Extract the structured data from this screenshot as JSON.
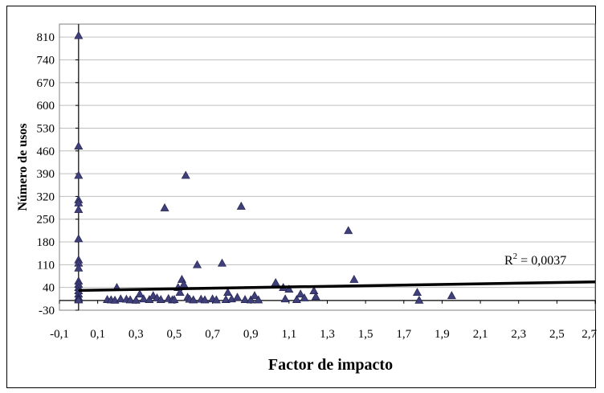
{
  "chart_data": {
    "type": "scatter",
    "title": "",
    "xlabel": "Factor de impacto",
    "ylabel": "Número de usos",
    "xlim": [
      -0.1,
      2.7
    ],
    "ylim": [
      -30,
      850
    ],
    "x_ticks": [
      "-0,1",
      "0,1",
      "0,3",
      "0,5",
      "0,7",
      "0,9",
      "1,1",
      "1,3",
      "1,5",
      "1,7",
      "1,9",
      "2,1",
      "2,3",
      "2,5",
      "2,7"
    ],
    "y_ticks": [
      "810",
      "740",
      "670",
      "600",
      "530",
      "460",
      "390",
      "320",
      "250",
      "180",
      "110",
      "40",
      "-30"
    ],
    "y_tick_values": [
      810,
      740,
      670,
      600,
      530,
      460,
      390,
      320,
      250,
      180,
      110,
      40,
      -30
    ],
    "x_tick_values": [
      -0.1,
      0.1,
      0.3,
      0.5,
      0.7,
      0.9,
      1.1,
      1.3,
      1.5,
      1.7,
      1.9,
      2.1,
      2.3,
      2.5,
      2.7
    ],
    "grid": "horizontal",
    "marker_color": "#3f3f7a",
    "trendline_color": "#000000",
    "annotation": {
      "text_base": "R",
      "text_sup": "2",
      "text_rest": " = 0,0037"
    },
    "trendline": {
      "x": [
        0,
        2.7
      ],
      "y": [
        31,
        57
      ]
    },
    "points": [
      [
        0,
        815
      ],
      [
        0,
        475
      ],
      [
        0,
        385
      ],
      [
        0,
        310
      ],
      [
        0,
        300
      ],
      [
        0,
        280
      ],
      [
        0,
        190
      ],
      [
        0,
        125
      ],
      [
        0,
        115
      ],
      [
        0,
        100
      ],
      [
        0,
        60
      ],
      [
        0,
        50
      ],
      [
        0,
        40
      ],
      [
        0,
        30
      ],
      [
        0,
        20
      ],
      [
        0,
        10
      ],
      [
        0,
        5
      ],
      [
        0,
        2
      ],
      [
        0.15,
        3
      ],
      [
        0.17,
        2
      ],
      [
        0.19,
        1
      ],
      [
        0.2,
        40
      ],
      [
        0.22,
        5
      ],
      [
        0.25,
        4
      ],
      [
        0.27,
        2
      ],
      [
        0.3,
        1
      ],
      [
        0.32,
        20
      ],
      [
        0.34,
        5
      ],
      [
        0.37,
        3
      ],
      [
        0.39,
        15
      ],
      [
        0.41,
        8
      ],
      [
        0.43,
        3
      ],
      [
        0.45,
        285
      ],
      [
        0.47,
        6
      ],
      [
        0.49,
        2
      ],
      [
        0.5,
        3
      ],
      [
        0.52,
        40
      ],
      [
        0.53,
        25
      ],
      [
        0.54,
        65
      ],
      [
        0.55,
        50
      ],
      [
        0.56,
        385
      ],
      [
        0.57,
        10
      ],
      [
        0.58,
        4
      ],
      [
        0.6,
        2
      ],
      [
        0.62,
        110
      ],
      [
        0.64,
        4
      ],
      [
        0.66,
        2
      ],
      [
        0.7,
        5
      ],
      [
        0.72,
        2
      ],
      [
        0.75,
        115
      ],
      [
        0.77,
        3
      ],
      [
        0.78,
        25
      ],
      [
        0.8,
        5
      ],
      [
        0.83,
        10
      ],
      [
        0.85,
        290
      ],
      [
        0.87,
        3
      ],
      [
        0.9,
        2
      ],
      [
        0.92,
        15
      ],
      [
        0.94,
        2
      ],
      [
        1.03,
        55
      ],
      [
        1.07,
        40
      ],
      [
        1.08,
        5
      ],
      [
        1.1,
        35
      ],
      [
        1.14,
        3
      ],
      [
        1.16,
        20
      ],
      [
        1.18,
        8
      ],
      [
        1.23,
        30
      ],
      [
        1.24,
        12
      ],
      [
        1.41,
        215
      ],
      [
        1.44,
        65
      ],
      [
        1.77,
        25
      ],
      [
        1.78,
        1
      ],
      [
        1.95,
        15
      ]
    ]
  }
}
